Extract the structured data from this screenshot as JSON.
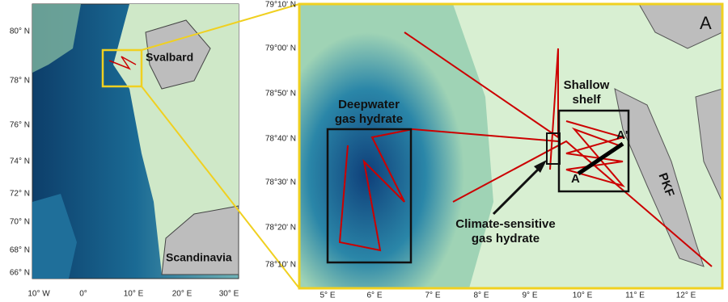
{
  "overview_map": {
    "lat_labels": [
      "80° N",
      "78° N",
      "76° N",
      "74° N",
      "72° N",
      "70° N",
      "68° N",
      "66° N"
    ],
    "lon_labels": [
      "10° W",
      "0°",
      "10° E",
      "20° E",
      "30° E"
    ],
    "place_labels": [
      "Svalbard",
      "Scandinavia"
    ]
  },
  "detail_map": {
    "panel_label": "A",
    "lat_labels": [
      "79°10' N",
      "79°00' N",
      "78°50' N",
      "78°40' N",
      "78°30' N",
      "78°20' N",
      "78°10' N"
    ],
    "lon_labels": [
      "5° E",
      "6° E",
      "7° E",
      "8° E",
      "9° E",
      "10° E",
      "11° E",
      "12° E"
    ],
    "annotations": {
      "deepwater": [
        "Deepwater",
        "gas hydrate"
      ],
      "shallow": [
        "Shallow",
        "shelf"
      ],
      "climate": [
        "Climate-sensitive",
        "gas hydrate"
      ],
      "fault": "PKF",
      "section_start": "A",
      "section_end": "A'"
    }
  }
}
